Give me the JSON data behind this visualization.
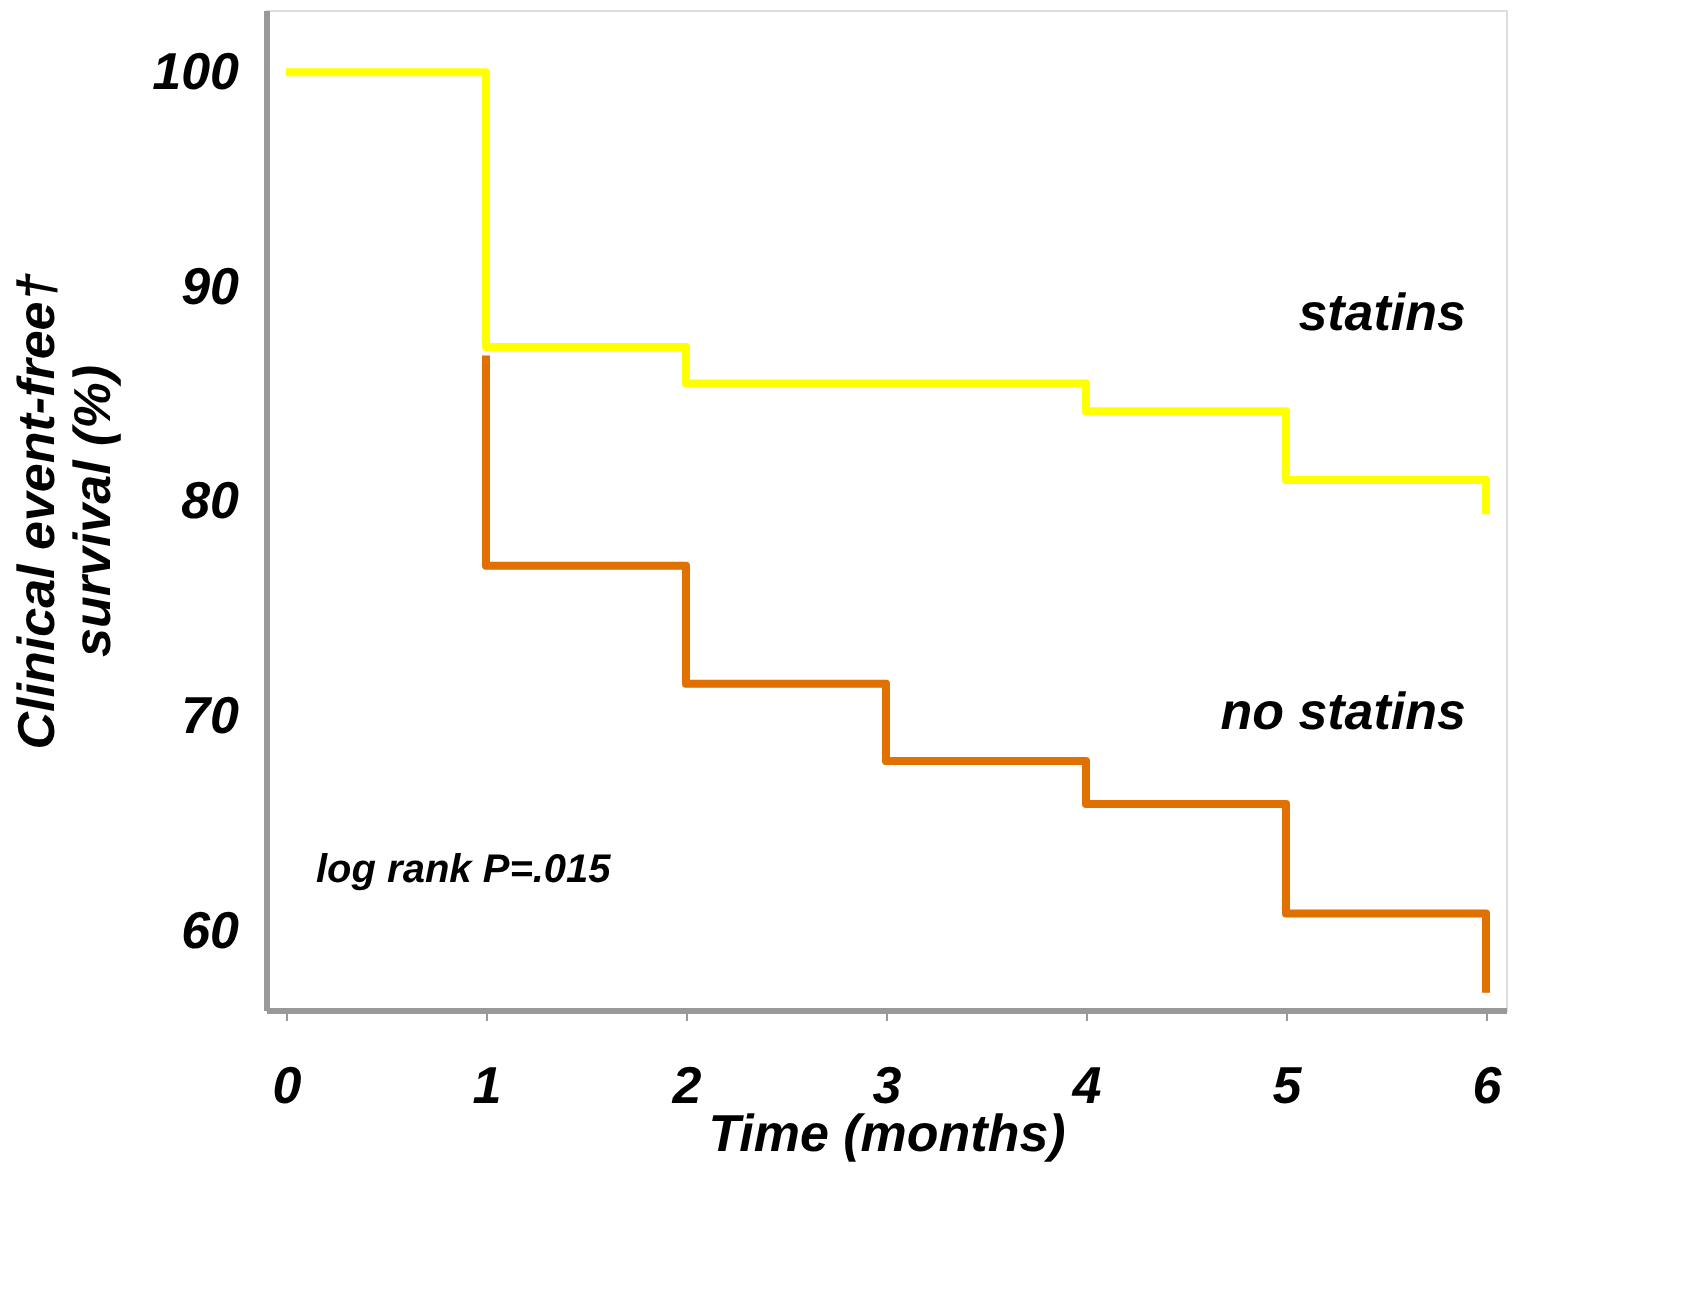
{
  "chart_data": {
    "type": "step",
    "xlabel": "Time (months)",
    "ylabel": "Clinical event-free†\nsurvival  (%)",
    "xlim": [
      -0.1,
      6.1
    ],
    "xticks": [
      0,
      1,
      2,
      3,
      4,
      5,
      6
    ],
    "ylim": [
      56.3,
      102.9
    ],
    "yticks": [
      60,
      70,
      80,
      90,
      100
    ],
    "grid": false,
    "legend": false,
    "line_style": "solid",
    "annotations": [
      "log rank P=.015"
    ],
    "series": [
      {
        "name": "statins",
        "color": "#ffff00",
        "x": [
          0,
          1,
          2,
          4,
          5,
          6
        ],
        "values": [
          100,
          87.2,
          85.5,
          84.2,
          81.0,
          79.4
        ]
      },
      {
        "name": "no statins",
        "color": "#e07000",
        "x": [
          1,
          1,
          2,
          3,
          4,
          5,
          6
        ],
        "values": [
          86.8,
          77.0,
          71.5,
          67.9,
          65.9,
          60.8,
          57.1
        ]
      }
    ]
  }
}
